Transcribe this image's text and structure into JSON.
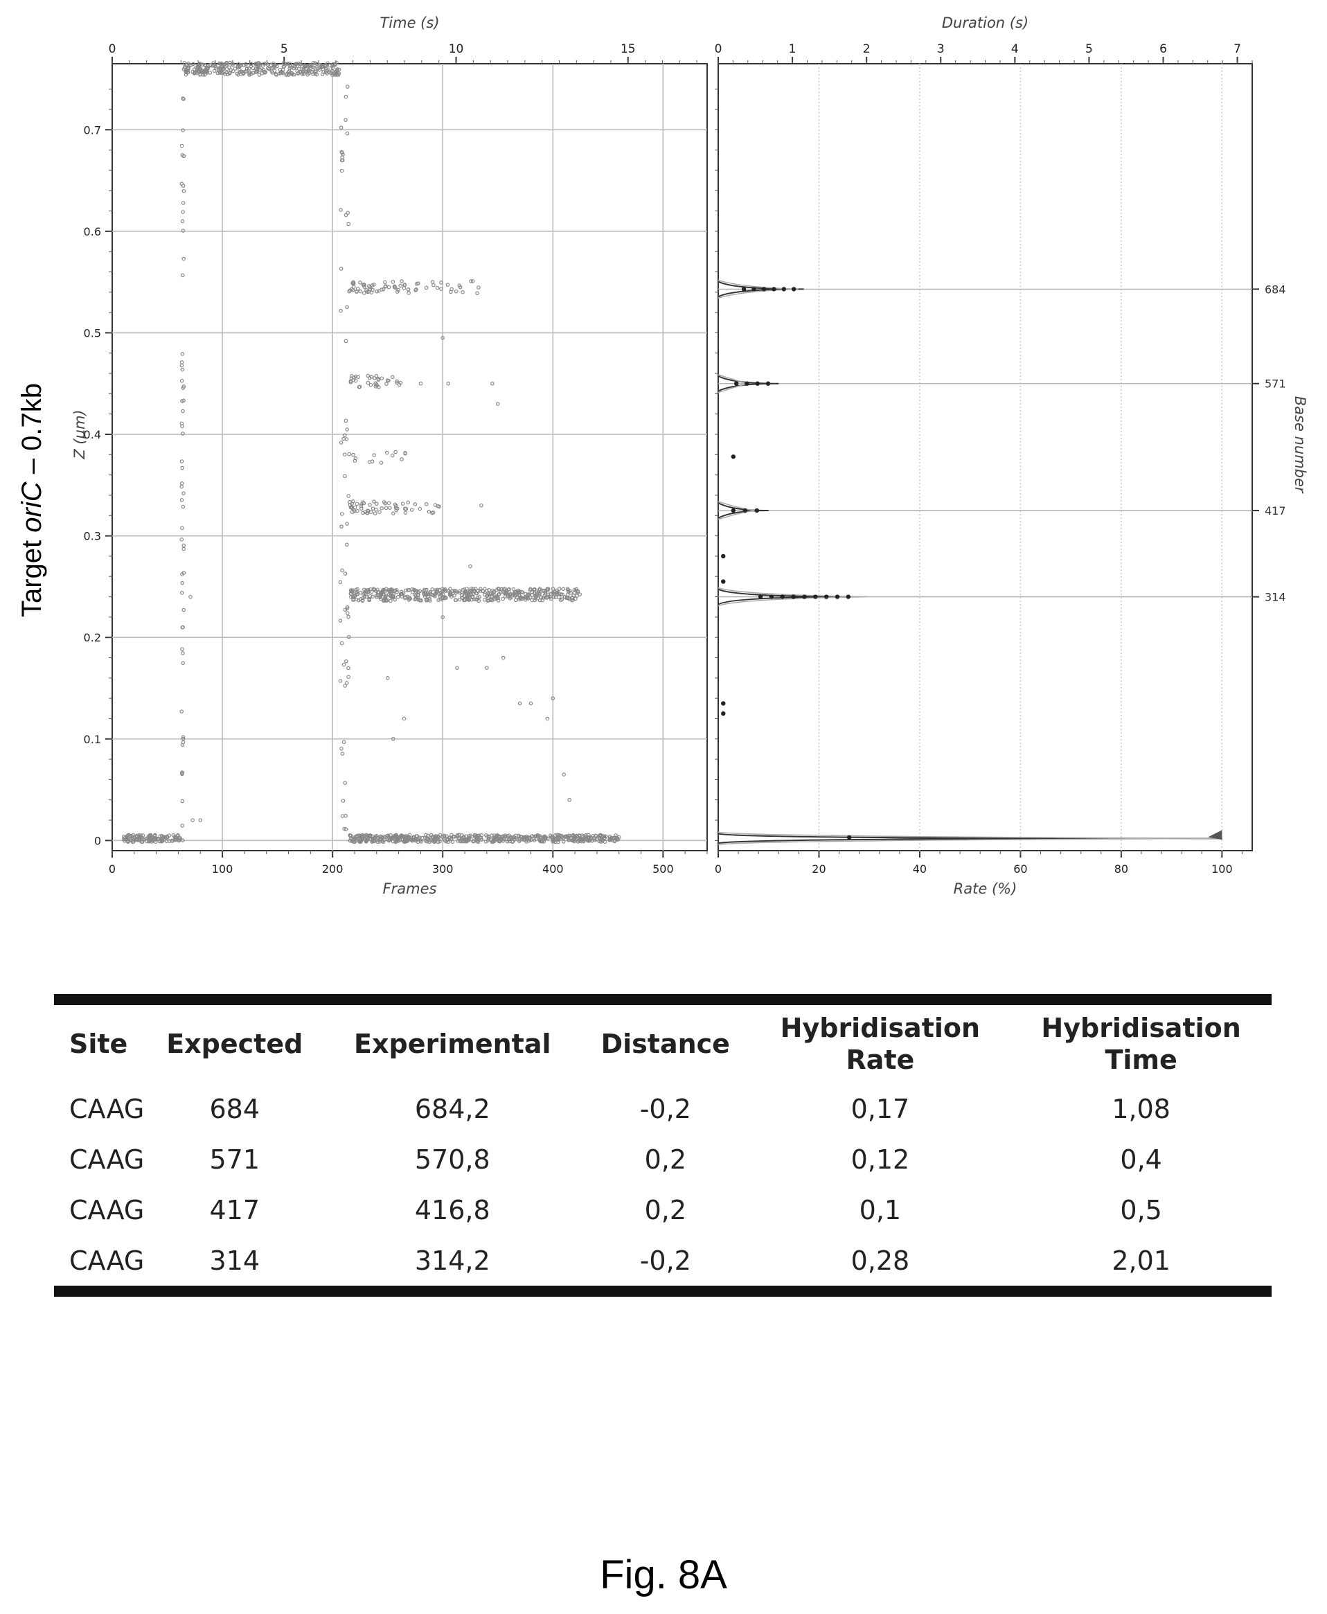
{
  "side_title": {
    "prefix": "Target ",
    "italic": "oriC",
    "suffix": " – 0.7kb"
  },
  "chart_data": [
    {
      "type": "scatter",
      "xlabel": "Frames",
      "x2label": "Time (s)",
      "ylabel": "Z (µm)",
      "xlim": [
        0,
        540
      ],
      "x2lim": [
        0,
        17.3
      ],
      "ylim": [
        -0.01,
        0.765
      ],
      "xticks": [
        0,
        100,
        200,
        300,
        400,
        500
      ],
      "x2ticks": [
        0,
        5,
        10,
        15
      ],
      "yticks": [
        0,
        0.1,
        0.2,
        0.3,
        0.4,
        0.5,
        0.6,
        0.7
      ],
      "grid": true,
      "segments": [
        {
          "name": "",
          "x_start": 10,
          "x_end": 63,
          "y": 0.002,
          "density": "dense"
        },
        {
          "name": "",
          "x_start": 63,
          "x_end": 65,
          "y_start": 0.0,
          "y_end": 0.76,
          "density": "vertical"
        },
        {
          "name": "",
          "x_start": 65,
          "x_end": 207,
          "y": 0.76,
          "density": "dense"
        },
        {
          "name": "",
          "x_start": 207,
          "x_end": 215,
          "y_start": 0.76,
          "y_end": 0.0,
          "density": "vertical"
        },
        {
          "name": "",
          "x_start": 215,
          "x_end": 335,
          "y": 0.545,
          "density": "medium"
        },
        {
          "name": "",
          "x_start": 215,
          "x_end": 265,
          "y": 0.452,
          "density": "medium"
        },
        {
          "name": "",
          "x_start": 215,
          "x_end": 270,
          "y": 0.378,
          "density": "sparse"
        },
        {
          "name": "",
          "x_start": 215,
          "x_end": 300,
          "y": 0.328,
          "density": "medium"
        },
        {
          "name": "",
          "x_start": 215,
          "x_end": 425,
          "y": 0.242,
          "density": "dense"
        },
        {
          "name": "",
          "x_start": 215,
          "x_end": 460,
          "y": 0.002,
          "density": "dense"
        }
      ],
      "points": [
        {
          "x": 71,
          "y": 0.24
        },
        {
          "x": 80,
          "y": 0.02
        },
        {
          "x": 73,
          "y": 0.02
        },
        {
          "x": 313,
          "y": 0.17
        },
        {
          "x": 325,
          "y": 0.27
        },
        {
          "x": 340,
          "y": 0.17
        },
        {
          "x": 355,
          "y": 0.18
        },
        {
          "x": 370,
          "y": 0.135
        },
        {
          "x": 380,
          "y": 0.135
        },
        {
          "x": 395,
          "y": 0.12
        },
        {
          "x": 400,
          "y": 0.14
        },
        {
          "x": 410,
          "y": 0.065
        },
        {
          "x": 415,
          "y": 0.04
        },
        {
          "x": 280,
          "y": 0.45
        },
        {
          "x": 300,
          "y": 0.495
        },
        {
          "x": 305,
          "y": 0.45
        },
        {
          "x": 345,
          "y": 0.45
        },
        {
          "x": 350,
          "y": 0.43
        },
        {
          "x": 335,
          "y": 0.33
        },
        {
          "x": 300,
          "y": 0.22
        },
        {
          "x": 250,
          "y": 0.16
        },
        {
          "x": 265,
          "y": 0.12
        },
        {
          "x": 255,
          "y": 0.1
        }
      ]
    },
    {
      "type": "line",
      "xlabel": "Rate (%)",
      "x2label": "Duration (s)",
      "ylabel": "Base number",
      "xlim": [
        0,
        106
      ],
      "x2lim": [
        0,
        7.2
      ],
      "ylim": [
        -0.01,
        0.765
      ],
      "xticks": [
        0,
        20,
        40,
        60,
        80,
        100
      ],
      "x2ticks": [
        0,
        1,
        2,
        3,
        4,
        5,
        6,
        7
      ],
      "ytick_labels": [
        "684",
        "571",
        "417",
        "314"
      ],
      "ytick_positions": [
        0.543,
        0.45,
        0.325,
        0.24
      ],
      "grid": true,
      "peaks": [
        {
          "base": "684",
          "y": 0.543,
          "rate": 17,
          "duration": 1.08
        },
        {
          "base": "571",
          "y": 0.45,
          "rate": 12,
          "duration": 0.4
        },
        {
          "base": "417",
          "y": 0.325,
          "rate": 10,
          "duration": 0.5
        },
        {
          "base": "314",
          "y": 0.24,
          "rate": 28,
          "duration": 2.01
        },
        {
          "base": "",
          "y": 0.002,
          "rate": 100,
          "duration": 6.8
        }
      ],
      "minor_points": [
        {
          "y": 0.378,
          "rate": 3
        },
        {
          "y": 0.28,
          "rate": 1
        },
        {
          "y": 0.255,
          "rate": 1
        },
        {
          "y": 0.135,
          "rate": 1
        },
        {
          "y": 0.125,
          "rate": 1
        },
        {
          "y": 0.003,
          "rate": 26
        }
      ]
    }
  ],
  "table": {
    "headers": [
      "Site",
      "Expected",
      "Experimental",
      "Distance",
      "Hybridisation\nRate",
      "Hybridisation\nTime"
    ],
    "rows": [
      [
        "CAAG",
        "684",
        "684,2",
        "-0,2",
        "0,17",
        "1,08"
      ],
      [
        "CAAG",
        "571",
        "570,8",
        "0,2",
        "0,12",
        "0,4"
      ],
      [
        "CAAG",
        "417",
        "416,8",
        "0,2",
        "0,1",
        "0,5"
      ],
      [
        "CAAG",
        "314",
        "314,2",
        "-0,2",
        "0,28",
        "2,01"
      ]
    ]
  },
  "caption": "Fig. 8A"
}
